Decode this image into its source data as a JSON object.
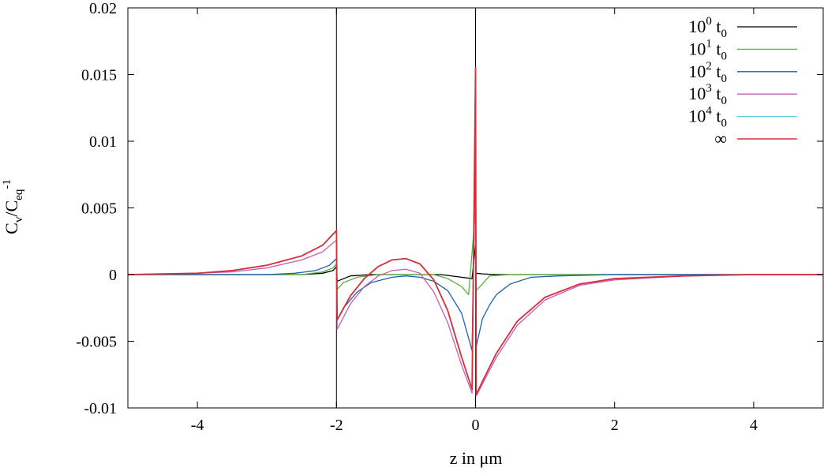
{
  "chart_data": {
    "type": "line",
    "xlabel_base": "z in ",
    "xlabel_unit": "μm",
    "ylabel": {
      "base": "C",
      "sub1": "v",
      "mid": "/C",
      "sub2": "eq",
      "sup": "-1"
    },
    "xlim": [
      -5,
      5
    ],
    "ylim": [
      -0.01,
      0.02
    ],
    "xticks": [
      -4,
      -2,
      0,
      2,
      4
    ],
    "xtick_labels": [
      "-4",
      "-2",
      "0",
      "2",
      "4"
    ],
    "yticks": [
      -0.01,
      -0.005,
      0,
      0.005,
      0.01,
      0.015,
      0.02
    ],
    "ytick_labels": [
      "-0.01",
      "-0.005",
      "0",
      "0.005",
      "0.01",
      "0.015",
      "0.02"
    ],
    "vlines": [
      -2,
      0
    ],
    "grid": false,
    "legend_position": "top-right",
    "series": [
      {
        "name": "10^0 t_0",
        "label": {
          "base": "10",
          "sup": "0",
          "mid": " t",
          "sub": "0"
        },
        "color": "#000000",
        "x": [
          -5,
          -4,
          -3,
          -2.5,
          -2.2,
          -2.05,
          -2.0,
          -1.99,
          -1.8,
          -1.5,
          -1.0,
          -0.5,
          -0.2,
          -0.05,
          0.0,
          0.01,
          0.1,
          0.3,
          1,
          2,
          5
        ],
        "y": [
          0,
          0,
          0,
          0,
          0.0001,
          0.0003,
          0.0006,
          -0.0005,
          -0.0001,
          0,
          0,
          0,
          -0.0002,
          -0.0003,
          0.0022,
          0.0001,
          5e-05,
          0,
          0,
          0,
          0
        ]
      },
      {
        "name": "10^1 t_0",
        "label": {
          "base": "10",
          "sup": "1",
          "mid": " t",
          "sub": "0"
        },
        "color": "#5ab23a",
        "x": [
          -5,
          -3,
          -2.5,
          -2.2,
          -2.05,
          -2.0,
          -1.99,
          -1.9,
          -1.7,
          -1.4,
          -1.0,
          -0.6,
          -0.4,
          -0.2,
          -0.1,
          0.0,
          0.01,
          0.1,
          0.2,
          0.5,
          2,
          5
        ],
        "y": [
          0,
          0,
          0,
          0.0002,
          0.0005,
          0.0008,
          -0.0011,
          -0.0006,
          -0.0002,
          0,
          0,
          0,
          -0.0003,
          -0.0009,
          -0.0015,
          0.0048,
          -0.0012,
          -0.0007,
          -0.0001,
          0,
          0,
          0
        ]
      },
      {
        "name": "10^2 t_0",
        "label": {
          "base": "10",
          "sup": "2",
          "mid": " t",
          "sub": "0"
        },
        "color": "#1f5fb0",
        "x": [
          -5,
          -3,
          -2.6,
          -2.3,
          -2.1,
          -2.0,
          -1.99,
          -1.9,
          -1.7,
          -1.5,
          -1.2,
          -1.0,
          -0.8,
          -0.6,
          -0.4,
          -0.2,
          -0.05,
          0.0,
          0.01,
          0.1,
          0.2,
          0.3,
          0.5,
          0.8,
          1.2,
          2,
          5
        ],
        "y": [
          0,
          0,
          0.0001,
          0.0003,
          0.0007,
          0.0012,
          -0.0034,
          -0.0025,
          -0.0013,
          -0.0006,
          -0.0002,
          -0.0001,
          -0.0002,
          -0.0005,
          -0.0012,
          -0.0029,
          -0.0057,
          0.0092,
          -0.0054,
          -0.0033,
          -0.0023,
          -0.0015,
          -0.0007,
          -0.0002,
          -0.0001,
          0,
          0
        ]
      },
      {
        "name": "10^3 t_0",
        "label": {
          "base": "10",
          "sup": "3",
          "mid": " t",
          "sub": "0"
        },
        "color": "#c35fb5",
        "x": [
          -5,
          -4,
          -3.5,
          -3,
          -2.5,
          -2.2,
          -2.0,
          -1.99,
          -1.8,
          -1.6,
          -1.4,
          -1.2,
          -1.0,
          -0.8,
          -0.6,
          -0.4,
          -0.2,
          -0.05,
          0.0,
          0.01,
          0.1,
          0.3,
          0.6,
          1.0,
          1.5,
          2.0,
          3.0,
          4.0,
          5.0
        ],
        "y": [
          0,
          0.0001,
          0.0002,
          0.0005,
          0.0011,
          0.0017,
          0.0026,
          -0.0041,
          -0.0022,
          -0.0009,
          -0.0001,
          0.0003,
          0.0004,
          0.0001,
          -0.0013,
          -0.0036,
          -0.0068,
          -0.0089,
          0.0142,
          -0.0091,
          -0.0082,
          -0.0062,
          -0.0038,
          -0.0019,
          -0.0008,
          -0.0004,
          -0.0001,
          0,
          0
        ]
      },
      {
        "name": "10^4 t_0",
        "label": {
          "base": "10",
          "sup": "4",
          "mid": " t",
          "sub": "0"
        },
        "color": "#5fc8d8",
        "x": [
          -5,
          -4,
          -3.5,
          -3,
          -2.5,
          -2.2,
          -2.0,
          -1.99,
          -1.8,
          -1.6,
          -1.4,
          -1.2,
          -1.0,
          -0.8,
          -0.6,
          -0.4,
          -0.2,
          -0.05,
          0.0,
          0.01,
          0.1,
          0.3,
          0.6,
          1.0,
          1.5,
          2.0,
          3.0,
          4.0,
          5.0
        ],
        "y": [
          0,
          0.0001,
          0.0003,
          0.0007,
          0.0014,
          0.0022,
          0.0033,
          -0.0034,
          -0.0016,
          -0.0003,
          0.0006,
          0.0011,
          0.0012,
          0.0008,
          -0.0004,
          -0.0027,
          -0.0062,
          -0.0086,
          0.0153,
          -0.009,
          -0.008,
          -0.0059,
          -0.0035,
          -0.0017,
          -0.0007,
          -0.0003,
          -0.0001,
          0,
          0
        ]
      },
      {
        "name": "∞",
        "label": {
          "base": "∞",
          "sup": "",
          "mid": "",
          "sub": ""
        },
        "color": "#d62f3a",
        "x": [
          -5,
          -4,
          -3.5,
          -3,
          -2.5,
          -2.2,
          -2.0,
          -1.99,
          -1.8,
          -1.6,
          -1.4,
          -1.2,
          -1.0,
          -0.8,
          -0.6,
          -0.4,
          -0.2,
          -0.05,
          0.0,
          0.01,
          0.1,
          0.3,
          0.6,
          1.0,
          1.5,
          2.0,
          3.0,
          4.0,
          5.0
        ],
        "y": [
          0,
          0.0001,
          0.0003,
          0.0007,
          0.0014,
          0.0022,
          0.0033,
          -0.0034,
          -0.0016,
          -0.0003,
          0.0006,
          0.0011,
          0.0012,
          0.0008,
          -0.0004,
          -0.0027,
          -0.0062,
          -0.0086,
          0.0155,
          -0.009,
          -0.008,
          -0.0059,
          -0.0035,
          -0.0017,
          -0.0007,
          -0.0003,
          -0.0001,
          0,
          0
        ]
      }
    ]
  }
}
